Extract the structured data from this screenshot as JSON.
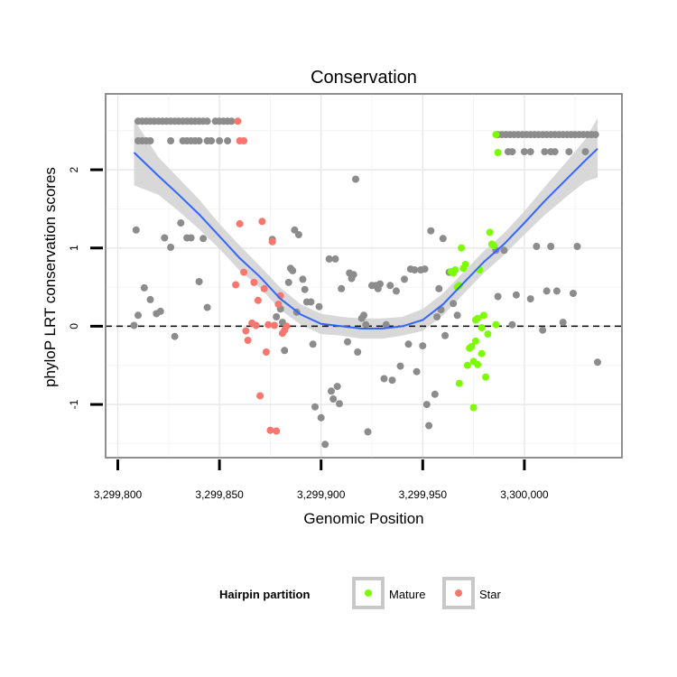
{
  "chart_data": {
    "type": "scatter",
    "title": "Conservation",
    "xlabel": "Genomic Position",
    "ylabel": "phyloP LRT conservation scores",
    "xlim": [
      3299794,
      3300048
    ],
    "ylim": [
      -1.68,
      2.97
    ],
    "x_ticks": [
      {
        "value": 3299800,
        "label": "3,299,800"
      },
      {
        "value": 3299850,
        "label": "3,299,850"
      },
      {
        "value": 3299900,
        "label": "3,299,900"
      },
      {
        "value": 3299950,
        "label": "3,299,950"
      },
      {
        "value": 3300000,
        "label": "3,300,000"
      }
    ],
    "y_ticks": [
      {
        "value": -1,
        "label": "-1"
      },
      {
        "value": 0,
        "label": "0"
      },
      {
        "value": 1,
        "label": "1"
      },
      {
        "value": 2,
        "label": "2"
      }
    ],
    "reference_line_y": 0,
    "grid": true,
    "legend": {
      "title": "Hairpin partition",
      "position": "bottom",
      "entries": [
        {
          "name": "Mature",
          "color": "#7cfc00"
        },
        {
          "name": "Star",
          "color": "#f8766d"
        }
      ]
    },
    "colors": {
      "other": "#8c8c8c",
      "Mature": "#7cfc00",
      "Star": "#f8766d",
      "smooth": "#3366ff",
      "ribbon": "#d4d4d4"
    },
    "series": [
      {
        "name": "Other",
        "points": [
          [
            3299810,
            2.62
          ],
          [
            3299812,
            2.62
          ],
          [
            3299814,
            2.62
          ],
          [
            3299816,
            2.62
          ],
          [
            3299818,
            2.62
          ],
          [
            3299820,
            2.62
          ],
          [
            3299822,
            2.62
          ],
          [
            3299824,
            2.62
          ],
          [
            3299826,
            2.62
          ],
          [
            3299828,
            2.62
          ],
          [
            3299830,
            2.62
          ],
          [
            3299832,
            2.62
          ],
          [
            3299834,
            2.62
          ],
          [
            3299836,
            2.62
          ],
          [
            3299838,
            2.62
          ],
          [
            3299840,
            2.62
          ],
          [
            3299842,
            2.62
          ],
          [
            3299844,
            2.62
          ],
          [
            3299848,
            2.62
          ],
          [
            3299850,
            2.62
          ],
          [
            3299852,
            2.62
          ],
          [
            3299854,
            2.62
          ],
          [
            3299856,
            2.62
          ],
          [
            3299810,
            2.37
          ],
          [
            3299812,
            2.37
          ],
          [
            3299814,
            2.37
          ],
          [
            3299816,
            2.37
          ],
          [
            3299826,
            2.37
          ],
          [
            3299832,
            2.37
          ],
          [
            3299834,
            2.37
          ],
          [
            3299836,
            2.37
          ],
          [
            3299838,
            2.37
          ],
          [
            3299840,
            2.37
          ],
          [
            3299844,
            2.37
          ],
          [
            3299846,
            2.37
          ],
          [
            3299850,
            2.37
          ],
          [
            3299854,
            2.37
          ],
          [
            3299809,
            1.23
          ],
          [
            3299810,
            0.14
          ],
          [
            3299808,
            0.01
          ],
          [
            3299813,
            0.49
          ],
          [
            3299816,
            0.34
          ],
          [
            3299819,
            0.16
          ],
          [
            3299821,
            0.19
          ],
          [
            3299823,
            1.13
          ],
          [
            3299826,
            1.01
          ],
          [
            3299828,
            -0.13
          ],
          [
            3299831,
            1.32
          ],
          [
            3299834,
            1.13
          ],
          [
            3299836,
            1.13
          ],
          [
            3299840,
            0.57
          ],
          [
            3299842,
            1.12
          ],
          [
            3299844,
            0.24
          ],
          [
            3299876,
            1.11
          ],
          [
            3299878,
            0.12
          ],
          [
            3299880,
            0.22
          ],
          [
            3299881,
            0.05
          ],
          [
            3299882,
            -0.31
          ],
          [
            3299884,
            0.56
          ],
          [
            3299885,
            0.74
          ],
          [
            3299886,
            0.71
          ],
          [
            3299887,
            1.23
          ],
          [
            3299888,
            0.18
          ],
          [
            3299889,
            1.17
          ],
          [
            3299891,
            0.6
          ],
          [
            3299892,
            0.47
          ],
          [
            3299893,
            0.31
          ],
          [
            3299895,
            0.31
          ],
          [
            3299896,
            -0.23
          ],
          [
            3299897,
            -1.03
          ],
          [
            3299899,
            0.25
          ],
          [
            3299900,
            -1.17
          ],
          [
            3299902,
            -1.51
          ],
          [
            3299904,
            0.86
          ],
          [
            3299905,
            -0.83
          ],
          [
            3299906,
            -0.93
          ],
          [
            3299907,
            0.86
          ],
          [
            3299908,
            -0.77
          ],
          [
            3299909,
            -0.99
          ],
          [
            3299910,
            0.48
          ],
          [
            3299913,
            -0.2
          ],
          [
            3299914,
            0.68
          ],
          [
            3299915,
            0.61
          ],
          [
            3299916,
            0.66
          ],
          [
            3299917,
            1.88
          ],
          [
            3299918,
            -0.33
          ],
          [
            3299920,
            0.1
          ],
          [
            3299921,
            0.14
          ],
          [
            3299922,
            0.02
          ],
          [
            3299923,
            -1.35
          ],
          [
            3299925,
            0.52
          ],
          [
            3299927,
            0.52
          ],
          [
            3299928,
            0.48
          ],
          [
            3299929,
            0.54
          ],
          [
            3299931,
            -0.67
          ],
          [
            3299932,
            0.02
          ],
          [
            3299934,
            0.52
          ],
          [
            3299935,
            -0.69
          ],
          [
            3299937,
            0.45
          ],
          [
            3299939,
            -0.51
          ],
          [
            3299941,
            0.6
          ],
          [
            3299943,
            -0.23
          ],
          [
            3299944,
            0.73
          ],
          [
            3299946,
            0.72
          ],
          [
            3299947,
            -0.58
          ],
          [
            3299949,
            0.72
          ],
          [
            3299950,
            -0.25
          ],
          [
            3299951,
            0.73
          ],
          [
            3299952,
            -1.0
          ],
          [
            3299953,
            -1.27
          ],
          [
            3299954,
            1.22
          ],
          [
            3299956,
            -0.87
          ],
          [
            3299957,
            0.12
          ],
          [
            3299958,
            0.48
          ],
          [
            3299959,
            0.21
          ],
          [
            3299960,
            1.12
          ],
          [
            3299961,
            -0.12
          ],
          [
            3299963,
            0.69
          ],
          [
            3299965,
            0.29
          ],
          [
            3299967,
            0.14
          ],
          [
            3299987,
            2.45
          ],
          [
            3299989,
            2.45
          ],
          [
            3299991,
            2.45
          ],
          [
            3299993,
            2.45
          ],
          [
            3299995,
            2.45
          ],
          [
            3299997,
            2.45
          ],
          [
            3299999,
            2.45
          ],
          [
            3300001,
            2.45
          ],
          [
            3300003,
            2.45
          ],
          [
            3300005,
            2.45
          ],
          [
            3300007,
            2.45
          ],
          [
            3300009,
            2.45
          ],
          [
            3300011,
            2.45
          ],
          [
            3300013,
            2.45
          ],
          [
            3300015,
            2.45
          ],
          [
            3300017,
            2.45
          ],
          [
            3300019,
            2.45
          ],
          [
            3300021,
            2.45
          ],
          [
            3300023,
            2.45
          ],
          [
            3300025,
            2.45
          ],
          [
            3300027,
            2.45
          ],
          [
            3300029,
            2.45
          ],
          [
            3300031,
            2.45
          ],
          [
            3300033,
            2.45
          ],
          [
            3300035,
            2.45
          ],
          [
            3299992,
            2.23
          ],
          [
            3299994,
            2.23
          ],
          [
            3300000,
            2.23
          ],
          [
            3300003,
            2.23
          ],
          [
            3300010,
            2.23
          ],
          [
            3300013,
            2.23
          ],
          [
            3300015,
            2.23
          ],
          [
            3300022,
            2.23
          ],
          [
            3300030,
            2.23
          ],
          [
            3299986,
            0.97
          ],
          [
            3299990,
            0.97
          ],
          [
            3299987,
            0.38
          ],
          [
            3299994,
            0.02
          ],
          [
            3299996,
            0.4
          ],
          [
            3300003,
            0.35
          ],
          [
            3300006,
            1.02
          ],
          [
            3300009,
            -0.05
          ],
          [
            3300011,
            0.45
          ],
          [
            3300013,
            1.02
          ],
          [
            3300016,
            0.45
          ],
          [
            3300019,
            0.05
          ],
          [
            3300024,
            0.42
          ],
          [
            3300026,
            1.02
          ],
          [
            3300036,
            -0.46
          ]
        ]
      },
      {
        "name": "Mature",
        "points": [
          [
            3299964,
            0.7
          ],
          [
            3299965,
            0.68
          ],
          [
            3299966,
            0.72
          ],
          [
            3299967,
            0.5
          ],
          [
            3299968,
            0.52
          ],
          [
            3299969,
            1.0
          ],
          [
            3299970,
            0.74
          ],
          [
            3299971,
            0.79
          ],
          [
            3299973,
            -0.28
          ],
          [
            3299974,
            -0.26
          ],
          [
            3299975,
            -1.04
          ],
          [
            3299976,
            0.08
          ],
          [
            3299977,
            -0.49
          ],
          [
            3299978,
            0.72
          ],
          [
            3299979,
            -0.02
          ],
          [
            3299980,
            0.14
          ],
          [
            3299981,
            -0.65
          ],
          [
            3299982,
            -0.1
          ],
          [
            3299983,
            1.2
          ],
          [
            3299984,
            1.05
          ],
          [
            3299985,
            1.03
          ],
          [
            3299986,
            0.02
          ],
          [
            3299986,
            2.45
          ],
          [
            3299987,
            2.22
          ],
          [
            3299968,
            -0.73
          ],
          [
            3299972,
            -0.5
          ],
          [
            3299976,
            -0.19
          ],
          [
            3299975,
            -0.45
          ],
          [
            3299979,
            -0.35
          ],
          [
            3299977,
            0.1
          ]
        ]
      },
      {
        "name": "Star",
        "points": [
          [
            3299859,
            2.62
          ],
          [
            3299860,
            2.37
          ],
          [
            3299862,
            2.37
          ],
          [
            3299860,
            1.31
          ],
          [
            3299858,
            0.53
          ],
          [
            3299862,
            0.69
          ],
          [
            3299863,
            -0.06
          ],
          [
            3299864,
            -0.18
          ],
          [
            3299866,
            0.04
          ],
          [
            3299867,
            0.56
          ],
          [
            3299868,
            0.01
          ],
          [
            3299869,
            0.33
          ],
          [
            3299870,
            -0.89
          ],
          [
            3299871,
            1.34
          ],
          [
            3299872,
            0.48
          ],
          [
            3299873,
            -0.33
          ],
          [
            3299874,
            0.02
          ],
          [
            3299875,
            -1.33
          ],
          [
            3299876,
            1.08
          ],
          [
            3299877,
            0.01
          ],
          [
            3299878,
            -1.34
          ],
          [
            3299879,
            0.28
          ],
          [
            3299880,
            0.39
          ],
          [
            3299881,
            -0.09
          ],
          [
            3299882,
            -0.05
          ],
          [
            3299883,
            0.0
          ]
        ]
      }
    ],
    "smooth_line": {
      "x": [
        3299808,
        3299820,
        3299830,
        3299840,
        3299850,
        3299860,
        3299870,
        3299880,
        3299890,
        3299900,
        3299910,
        3299920,
        3299930,
        3299940,
        3299950,
        3299960,
        3299970,
        3299980,
        3299990,
        3300000,
        3300010,
        3300020,
        3300030,
        3300036
      ],
      "y": [
        2.22,
        1.92,
        1.68,
        1.43,
        1.15,
        0.87,
        0.63,
        0.35,
        0.15,
        0.03,
        0.0,
        -0.03,
        -0.03,
        0.0,
        0.08,
        0.28,
        0.55,
        0.82,
        1.05,
        1.32,
        1.6,
        1.86,
        2.12,
        2.27
      ],
      "ribbon_lower": [
        1.8,
        1.68,
        1.47,
        1.24,
        0.99,
        0.71,
        0.49,
        0.21,
        0.02,
        -0.1,
        -0.12,
        -0.16,
        -0.16,
        -0.12,
        -0.06,
        0.14,
        0.41,
        0.68,
        0.91,
        1.17,
        1.42,
        1.64,
        1.85,
        1.9
      ],
      "ribbon_upper": [
        2.64,
        2.16,
        1.89,
        1.62,
        1.31,
        1.03,
        0.77,
        0.49,
        0.28,
        0.16,
        0.12,
        0.1,
        0.1,
        0.12,
        0.22,
        0.42,
        0.69,
        0.96,
        1.19,
        1.47,
        1.78,
        2.08,
        2.39,
        2.66
      ]
    }
  }
}
